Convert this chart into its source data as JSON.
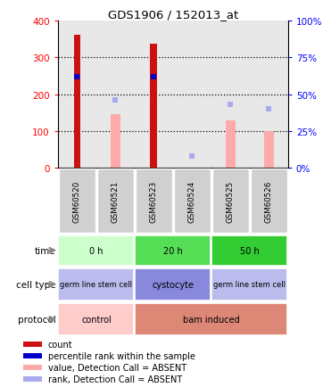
{
  "title": "GDS1906 / 152013_at",
  "samples": [
    "GSM60520",
    "GSM60521",
    "GSM60523",
    "GSM60524",
    "GSM60525",
    "GSM60526"
  ],
  "count_values": [
    360,
    0,
    338,
    0,
    0,
    0
  ],
  "percentile_rank_values": [
    62,
    0,
    62,
    0,
    0,
    0
  ],
  "absent_value_values": [
    0,
    145,
    0,
    0,
    130,
    100
  ],
  "absent_rank_values": [
    0,
    46,
    0,
    8,
    43,
    40
  ],
  "ylim_left": [
    0,
    400
  ],
  "ylim_right": [
    0,
    100
  ],
  "left_ticks": [
    0,
    100,
    200,
    300,
    400
  ],
  "right_ticks": [
    0,
    25,
    50,
    75,
    100
  ],
  "time_groups": [
    {
      "label": "0 h",
      "span": [
        0,
        2
      ],
      "color": "#ccffcc"
    },
    {
      "label": "20 h",
      "span": [
        2,
        4
      ],
      "color": "#55dd55"
    },
    {
      "label": "50 h",
      "span": [
        4,
        6
      ],
      "color": "#33cc33"
    }
  ],
  "celltype_groups": [
    {
      "label": "germ line stem cell",
      "span": [
        0,
        2
      ],
      "color": "#bbbbee"
    },
    {
      "label": "cystocyte",
      "span": [
        2,
        4
      ],
      "color": "#8888dd"
    },
    {
      "label": "germ line stem cell",
      "span": [
        4,
        6
      ],
      "color": "#bbbbee"
    }
  ],
  "protocol_groups": [
    {
      "label": "control",
      "span": [
        0,
        2
      ],
      "color": "#ffcccc"
    },
    {
      "label": "bam induced",
      "span": [
        2,
        6
      ],
      "color": "#dd8877"
    }
  ],
  "count_color": "#cc1111",
  "rank_color": "#0000cc",
  "absent_value_color": "#ffaaaa",
  "absent_rank_color": "#aaaaee",
  "bg_color": "#ffffff",
  "label_color": "#888888",
  "n_cols": 6
}
